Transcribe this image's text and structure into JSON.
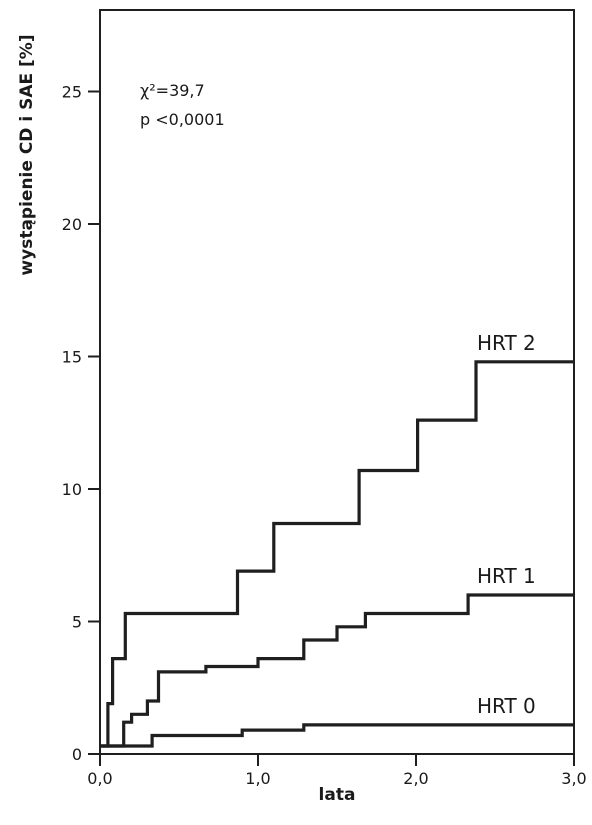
{
  "chart_data": {
    "type": "line",
    "step": true,
    "xlabel": "lata",
    "ylabel": "wystąpienie CD i SAE [%]",
    "xlim": [
      0,
      3.0
    ],
    "ylim": [
      0,
      28
    ],
    "x_ticks": [
      0,
      1,
      2,
      3
    ],
    "x_tick_labels": [
      "0,0",
      "1,0",
      "2,0",
      "3,0"
    ],
    "y_ticks": [
      0,
      5,
      10,
      15,
      20,
      25
    ],
    "y_tick_labels": [
      "0",
      "5",
      "10",
      "15",
      "20",
      "25"
    ],
    "grid": false,
    "annotations": [
      "χ²=39,7",
      "p <0,0001"
    ],
    "series": [
      {
        "name": "HRT 2",
        "x": [
          0.0,
          0.05,
          0.08,
          0.12,
          0.16,
          0.87,
          1.1,
          1.64,
          2.01,
          2.38,
          3.0
        ],
        "y": [
          0.3,
          1.9,
          3.6,
          3.6,
          5.3,
          6.9,
          8.7,
          10.7,
          12.6,
          14.8,
          14.8
        ]
      },
      {
        "name": "HRT 1",
        "x": [
          0.0,
          0.15,
          0.2,
          0.3,
          0.34,
          0.37,
          0.67,
          1.0,
          1.29,
          1.5,
          1.68,
          2.33,
          3.0
        ],
        "y": [
          0.3,
          1.2,
          1.5,
          2.0,
          2.0,
          3.1,
          3.3,
          3.6,
          4.3,
          4.8,
          5.3,
          6.0,
          6.0
        ]
      },
      {
        "name": "HRT 0",
        "x": [
          0.0,
          0.33,
          0.9,
          1.29,
          3.0
        ],
        "y": [
          0.3,
          0.7,
          0.9,
          1.1,
          1.1
        ]
      }
    ]
  }
}
